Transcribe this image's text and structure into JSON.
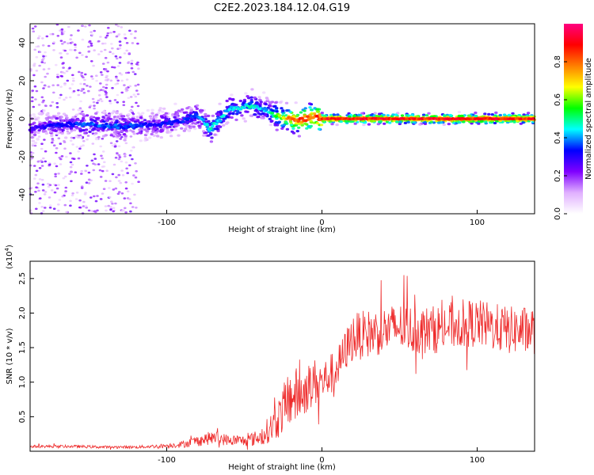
{
  "figure_title": "C2E2.2023.184.12.04.G19",
  "chart_data": [
    {
      "type": "heatmap",
      "xlabel": "Height of straight line (km)",
      "ylabel": "Frequency (Hz)",
      "xlim": [
        -188,
        137
      ],
      "ylim": [
        -50,
        50
      ],
      "xticks": [
        -100,
        0,
        100
      ],
      "yticks": [
        -40,
        -20,
        0,
        20,
        40
      ],
      "colorbar": {
        "label": "Normalized spectral amplitude",
        "range": [
          0.0,
          1.0
        ],
        "ticks": [
          "0.0",
          "0.2",
          "0.4",
          "0.6",
          "0.8"
        ],
        "colors": [
          "#ffffff",
          "#e0b0ff",
          "#7f00ff",
          "#0000ff",
          "#00ffff",
          "#00ff00",
          "#ffff00",
          "#ff7f00",
          "#ff0000",
          "#ff0080"
        ]
      },
      "ridge": {
        "x": [
          -185,
          -170,
          -150,
          -130,
          -110,
          -95,
          -80,
          -72,
          -60,
          -45,
          -35,
          -25,
          -20,
          -15,
          -10,
          -5,
          0,
          10,
          40,
          80,
          130
        ],
        "y": [
          -5,
          -3,
          -3,
          -4,
          -3,
          -2,
          2,
          -6,
          5,
          7,
          4,
          0,
          0,
          -1,
          0,
          1,
          0,
          0,
          0,
          0,
          0
        ],
        "amplitude": [
          0.3,
          0.35,
          0.4,
          0.4,
          0.35,
          0.35,
          0.4,
          0.5,
          0.45,
          0.5,
          0.45,
          0.7,
          0.85,
          0.9,
          0.9,
          0.9,
          0.95,
          0.95,
          0.95,
          0.95,
          0.95
        ]
      }
    },
    {
      "type": "line",
      "xlabel": "Height of straight line (km)",
      "ylabel": "SNR (10 * v/v)",
      "y_multiplier": "(x10",
      "y_multiplier_exp": "4",
      "xlim": [
        -188,
        137
      ],
      "ylim": [
        0,
        2.75
      ],
      "xticks": [
        -100,
        0,
        100
      ],
      "yticks": [
        "0.5",
        "1.0",
        "1.5",
        "2.0",
        "2.5"
      ],
      "series": [
        {
          "color": "#ee2b2b",
          "x": [
            -188,
            -160,
            -140,
            -120,
            -100,
            -90,
            -80,
            -70,
            -60,
            -50,
            -40,
            -30,
            -25,
            -20,
            -15,
            -10,
            -5,
            0,
            5,
            10,
            15,
            20,
            30,
            40,
            50,
            60,
            70,
            80,
            90,
            100,
            110,
            120,
            130,
            137
          ],
          "y": [
            0.07,
            0.07,
            0.06,
            0.06,
            0.08,
            0.1,
            0.15,
            0.2,
            0.16,
            0.15,
            0.2,
            0.4,
            0.6,
            0.8,
            0.8,
            0.9,
            1.0,
            1.0,
            1.1,
            1.2,
            1.45,
            1.65,
            1.7,
            1.75,
            1.8,
            1.75,
            1.75,
            1.8,
            1.85,
            1.85,
            1.8,
            1.75,
            1.75,
            1.75
          ],
          "noise": [
            0.02,
            0.02,
            0.02,
            0.02,
            0.03,
            0.05,
            0.08,
            0.1,
            0.08,
            0.08,
            0.12,
            0.25,
            0.35,
            0.45,
            0.4,
            0.35,
            0.35,
            0.3,
            0.3,
            0.3,
            0.3,
            0.35,
            0.35,
            0.35,
            0.35,
            0.35,
            0.35,
            0.35,
            0.35,
            0.35,
            0.35,
            0.35,
            0.35,
            0.35
          ]
        }
      ]
    }
  ]
}
